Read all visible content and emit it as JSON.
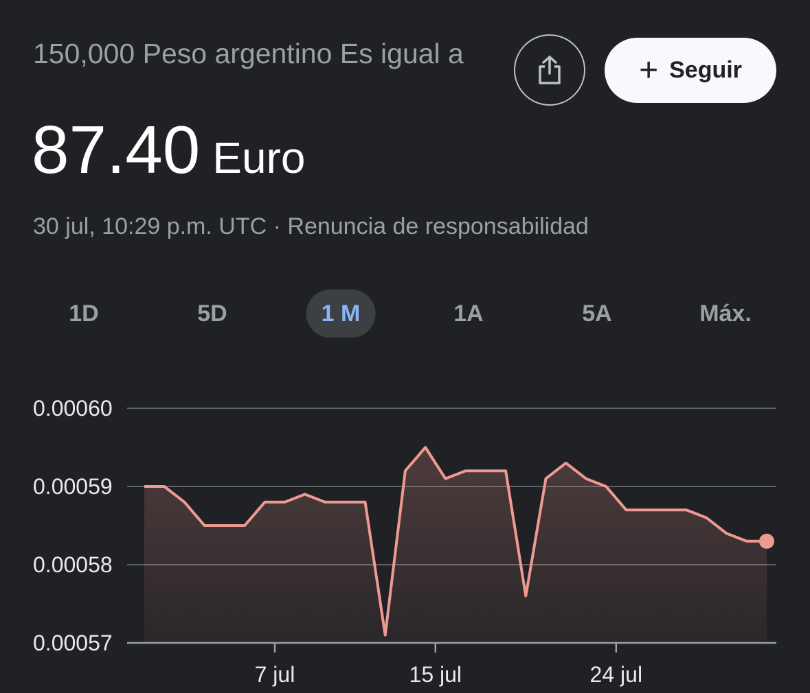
{
  "header": {
    "subtitle": "150,000 Peso argentino Es igual a",
    "amount": "87.40",
    "currency": "Euro",
    "timestamp": "30 jul, 10:29 p.m. UTC",
    "separator": "·",
    "disclaimer": "Renuncia de responsabilidad"
  },
  "actions": {
    "share_icon": "share-icon",
    "follow_icon": "plus-icon",
    "follow_label": "Seguir"
  },
  "tabs": [
    {
      "label": "1D",
      "active": false
    },
    {
      "label": "5D",
      "active": false
    },
    {
      "label": "1 M",
      "active": true
    },
    {
      "label": "1A",
      "active": false
    },
    {
      "label": "5A",
      "active": false
    },
    {
      "label": "Máx.",
      "active": false
    }
  ],
  "colors": {
    "line": "#ee9a91",
    "grid": "#5f6368",
    "background": "#202124",
    "active_tab": "#8ab4f8"
  },
  "chart_data": {
    "type": "area",
    "title": "",
    "xlabel": "",
    "ylabel": "",
    "ylim": [
      0.00057,
      0.0006
    ],
    "yticks": [
      "0.00060",
      "0.00059",
      "0.00058",
      "0.00057"
    ],
    "ytick_values": [
      0.0006,
      0.00059,
      0.00058,
      0.00057
    ],
    "xticks": [
      {
        "day": 7,
        "label": "7 jul"
      },
      {
        "day": 15,
        "label": "15 jul"
      },
      {
        "day": 24,
        "label": "24 jul"
      }
    ],
    "xlim": [
      0.5,
      31.5
    ],
    "grid": true,
    "series": [
      {
        "days": [
          0.5,
          1.5,
          2.5,
          3.5,
          4.5,
          5.5,
          6.5,
          7.5,
          8.5,
          9.5,
          10.5,
          11.5,
          12.5,
          13.5,
          14.5,
          15.5,
          16.5,
          17.5,
          18.5,
          19.5,
          20.5,
          21.5,
          22.5,
          23.5,
          24.5,
          25.5,
          26.5,
          27.5,
          28.5,
          29.5,
          30.5,
          31.5
        ],
        "values": [
          0.00059,
          0.00059,
          0.000588,
          0.000585,
          0.000585,
          0.000585,
          0.000588,
          0.000588,
          0.000589,
          0.000588,
          0.000588,
          0.000588,
          0.000571,
          0.000592,
          0.000595,
          0.000591,
          0.000592,
          0.000592,
          0.000592,
          0.000576,
          0.000591,
          0.000593,
          0.000591,
          0.00059,
          0.000587,
          0.000587,
          0.000587,
          0.000587,
          0.000586,
          0.000584,
          0.000583,
          0.000583
        ]
      }
    ]
  }
}
